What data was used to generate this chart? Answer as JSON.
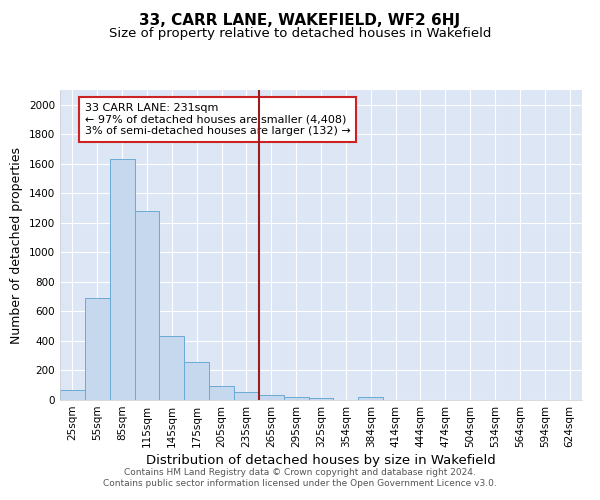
{
  "title": "33, CARR LANE, WAKEFIELD, WF2 6HJ",
  "subtitle": "Size of property relative to detached houses in Wakefield",
  "xlabel": "Distribution of detached houses by size in Wakefield",
  "ylabel": "Number of detached properties",
  "categories": [
    "25sqm",
    "55sqm",
    "85sqm",
    "115sqm",
    "145sqm",
    "175sqm",
    "205sqm",
    "235sqm",
    "265sqm",
    "295sqm",
    "325sqm",
    "354sqm",
    "384sqm",
    "414sqm",
    "444sqm",
    "474sqm",
    "504sqm",
    "534sqm",
    "564sqm",
    "594sqm",
    "624sqm"
  ],
  "values": [
    65,
    690,
    1630,
    1280,
    435,
    255,
    95,
    55,
    33,
    22,
    12,
    0,
    18,
    0,
    0,
    0,
    0,
    0,
    0,
    0,
    0
  ],
  "bar_color": "#c5d8ee",
  "bar_edge_color": "#6aaad4",
  "vline_x": 7.5,
  "vline_color": "#9b1c1c",
  "annotation_text": "33 CARR LANE: 231sqm\n← 97% of detached houses are smaller (4,408)\n3% of semi-detached houses are larger (132) →",
  "annotation_box_color": "#ffffff",
  "annotation_box_edge_color": "#cc2222",
  "ylim": [
    0,
    2100
  ],
  "yticks": [
    0,
    200,
    400,
    600,
    800,
    1000,
    1200,
    1400,
    1600,
    1800,
    2000
  ],
  "background_color": "#dce6f5",
  "footer_line1": "Contains HM Land Registry data © Crown copyright and database right 2024.",
  "footer_line2": "Contains public sector information licensed under the Open Government Licence v3.0.",
  "title_fontsize": 11,
  "subtitle_fontsize": 9.5,
  "xlabel_fontsize": 9.5,
  "ylabel_fontsize": 9,
  "tick_fontsize": 7.5,
  "annotation_fontsize": 8,
  "footer_fontsize": 6.5
}
